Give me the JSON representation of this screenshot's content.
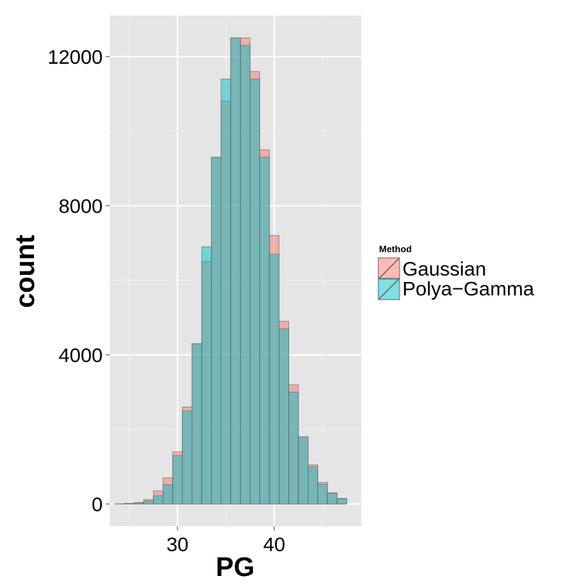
{
  "colors": {
    "panel": "#e5e5e5",
    "grid_major": "#ffffff",
    "grid_minor": "#f2f2f2",
    "bar_stroke": "#666666",
    "gaussian": "#f8766d",
    "polya_gamma": "#00bfc4"
  },
  "chart_data": {
    "type": "bar",
    "subtype": "overlapping-histogram",
    "title": "",
    "xlabel": "PG",
    "ylabel": "count",
    "xlim": [
      23,
      49
    ],
    "ylim": [
      -600,
      13100
    ],
    "x_ticks": [
      30,
      40
    ],
    "x_tick_labels": [
      "30",
      "40"
    ],
    "y_ticks": [
      0,
      4000,
      8000,
      12000
    ],
    "y_tick_labels": [
      "0",
      "4000",
      "8000",
      "12000"
    ],
    "grid": true,
    "legend": {
      "title": "Method",
      "placement": "right",
      "entries": [
        "Gaussian",
        "Polya−Gamma"
      ]
    },
    "bin_width": 1,
    "bin_centers": [
      24,
      25,
      26,
      27,
      28,
      29,
      30,
      31,
      32,
      33,
      34,
      35,
      36,
      37,
      38,
      39,
      40,
      41,
      42,
      43,
      44,
      45,
      46,
      47
    ],
    "series": [
      {
        "name": "Gaussian",
        "color": "#f8766d",
        "values": [
          5,
          15,
          40,
          120,
          350,
          700,
          1400,
          2600,
          4300,
          6500,
          9300,
          10800,
          12500,
          12500,
          11600,
          9500,
          7200,
          4900,
          3200,
          1800,
          1050,
          580,
          300,
          150
        ]
      },
      {
        "name": "Polya−Gamma",
        "color": "#00bfc4",
        "values": [
          3,
          10,
          30,
          80,
          220,
          520,
          1300,
          2500,
          4300,
          6900,
          9300,
          11400,
          12500,
          12300,
          11400,
          9300,
          6700,
          4700,
          3000,
          1800,
          1000,
          530,
          280,
          140
        ]
      }
    ]
  }
}
